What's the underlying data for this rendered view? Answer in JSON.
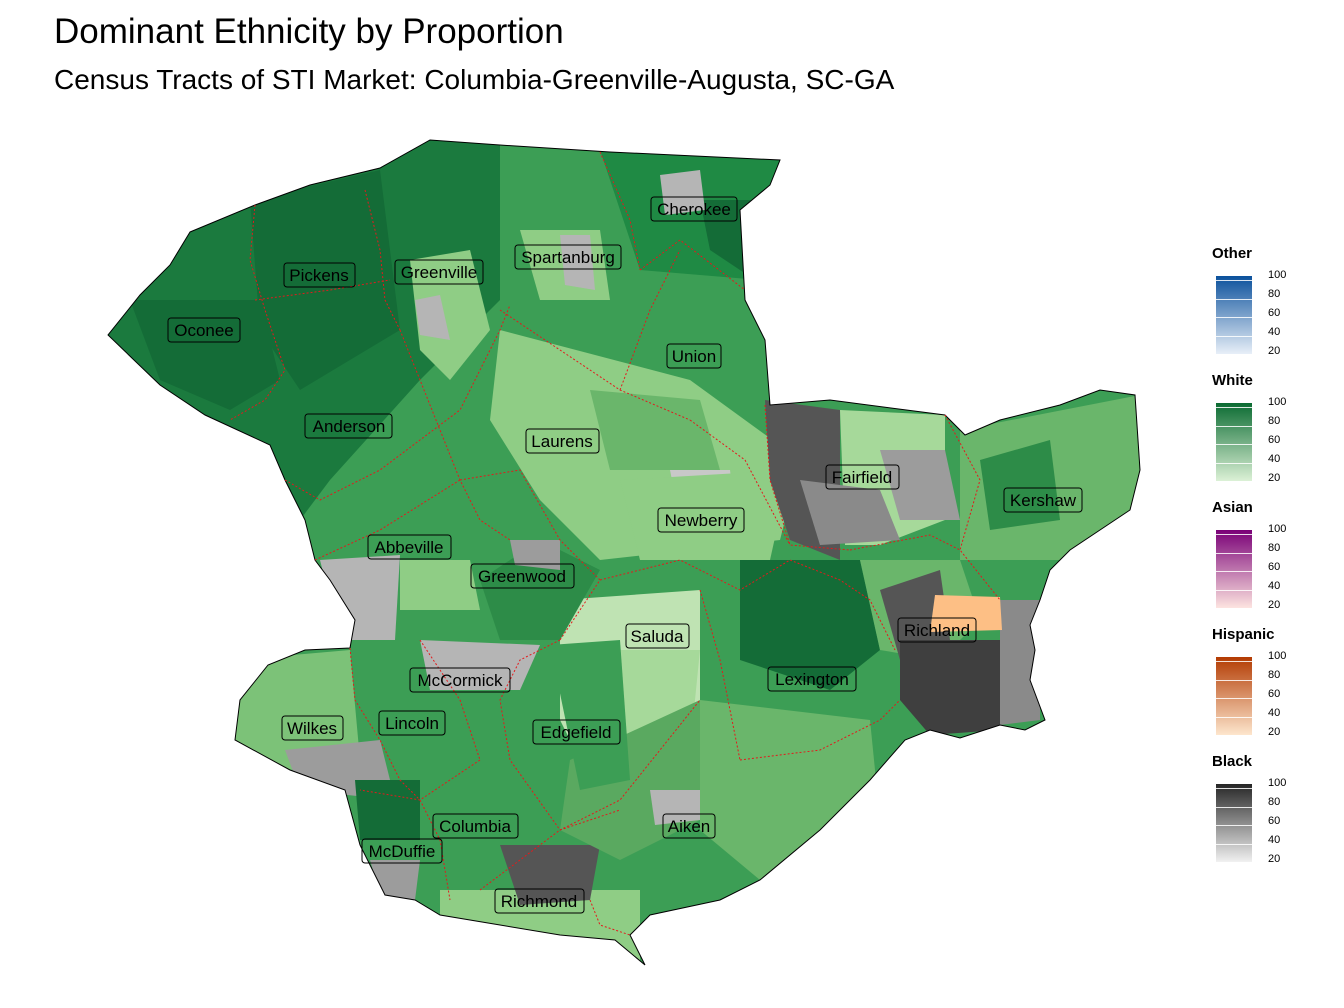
{
  "title": "Dominant Ethnicity by Proportion",
  "subtitle": "Census Tracts of STI Market: Columbia-Greenville-Augusta, SC-GA",
  "counties": [
    "Cherokee",
    "Spartanburg",
    "Greenville",
    "Pickens",
    "Oconee",
    "Union",
    "Anderson",
    "Laurens",
    "Fairfield",
    "Kershaw",
    "Newberry",
    "Abbeville",
    "Greenwood",
    "Saluda",
    "Richland",
    "McCormick",
    "Lexington",
    "Wilkes",
    "Lincoln",
    "Edgefield",
    "Columbia",
    "Aiken",
    "McDuffie",
    "Richmond"
  ],
  "legends": [
    {
      "name": "Other",
      "color_low": "#e8eff8",
      "color_high": "#0b519c",
      "ticks": [
        "100",
        "80",
        "60",
        "40",
        "20"
      ]
    },
    {
      "name": "White",
      "color_low": "#dcf1d6",
      "color_high": "#0b6b32",
      "ticks": [
        "100",
        "80",
        "60",
        "40",
        "20"
      ]
    },
    {
      "name": "Asian",
      "color_low": "#fde4e0",
      "color_high": "#7a0177",
      "ticks": [
        "100",
        "80",
        "60",
        "40",
        "20"
      ]
    },
    {
      "name": "Hispanic",
      "color_low": "#fde6cd",
      "color_high": "#b33b02",
      "ticks": [
        "100",
        "80",
        "60",
        "40",
        "20"
      ]
    },
    {
      "name": "Black",
      "color_low": "#f1f1f1",
      "color_high": "#262626",
      "ticks": [
        "100",
        "80",
        "60",
        "40",
        "20"
      ]
    }
  ],
  "colors": {
    "white_dark": "#146c37",
    "white_mid": "#3c9e55",
    "white_light": "#8fcd85",
    "white_pale": "#bfe3b3",
    "black_dark": "#3f3f3f",
    "black_mid": "#7f7f7f",
    "black_light": "#b5b5b5",
    "hispanic": "#fdbf85",
    "county_border": "#e31a1c"
  }
}
